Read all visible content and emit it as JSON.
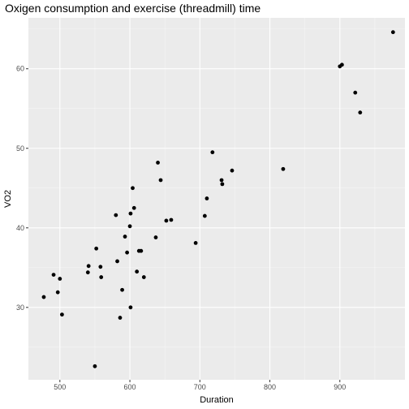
{
  "chart_data": {
    "type": "scatter",
    "title": "Oxigen consumption and exercise (threadmill) time",
    "xlabel": "Duration",
    "ylabel": "VO2",
    "xlim": [
      455,
      993
    ],
    "ylim": [
      20.9,
      66.4
    ],
    "xticks": [
      500,
      600,
      700,
      800,
      900
    ],
    "yticks": [
      30,
      40,
      50,
      60
    ],
    "grid": true,
    "colors": {
      "panel": "#ebebeb",
      "grid_major": "#ffffff",
      "point": "#000000",
      "tick_text": "#4d4d4d"
    },
    "points": [
      {
        "x": 477,
        "y": 31.3
      },
      {
        "x": 491,
        "y": 34.1
      },
      {
        "x": 497,
        "y": 31.9
      },
      {
        "x": 500,
        "y": 33.6
      },
      {
        "x": 503,
        "y": 29.1
      },
      {
        "x": 540,
        "y": 34.4
      },
      {
        "x": 541,
        "y": 35.2
      },
      {
        "x": 550,
        "y": 22.6
      },
      {
        "x": 552,
        "y": 37.4
      },
      {
        "x": 558,
        "y": 35.1
      },
      {
        "x": 559,
        "y": 33.8
      },
      {
        "x": 580,
        "y": 41.6
      },
      {
        "x": 582,
        "y": 35.8
      },
      {
        "x": 586,
        "y": 28.7
      },
      {
        "x": 589,
        "y": 32.2
      },
      {
        "x": 593,
        "y": 38.9
      },
      {
        "x": 596,
        "y": 36.9
      },
      {
        "x": 600,
        "y": 40.2
      },
      {
        "x": 601,
        "y": 41.8
      },
      {
        "x": 601,
        "y": 30.0
      },
      {
        "x": 604,
        "y": 45.0
      },
      {
        "x": 606,
        "y": 42.5
      },
      {
        "x": 610,
        "y": 34.5
      },
      {
        "x": 613,
        "y": 37.1
      },
      {
        "x": 616,
        "y": 37.1
      },
      {
        "x": 620,
        "y": 33.8
      },
      {
        "x": 637,
        "y": 38.8
      },
      {
        "x": 640,
        "y": 48.2
      },
      {
        "x": 644,
        "y": 46.0
      },
      {
        "x": 652,
        "y": 40.9
      },
      {
        "x": 659,
        "y": 41.0
      },
      {
        "x": 694,
        "y": 38.1
      },
      {
        "x": 707,
        "y": 41.5
      },
      {
        "x": 710,
        "y": 43.7
      },
      {
        "x": 718,
        "y": 49.5
      },
      {
        "x": 731,
        "y": 46.0
      },
      {
        "x": 732,
        "y": 45.5
      },
      {
        "x": 746,
        "y": 47.2
      },
      {
        "x": 819,
        "y": 47.4
      },
      {
        "x": 900,
        "y": 60.3
      },
      {
        "x": 903,
        "y": 60.5
      },
      {
        "x": 922,
        "y": 57.0
      },
      {
        "x": 929,
        "y": 54.5
      },
      {
        "x": 976,
        "y": 64.6
      }
    ]
  }
}
